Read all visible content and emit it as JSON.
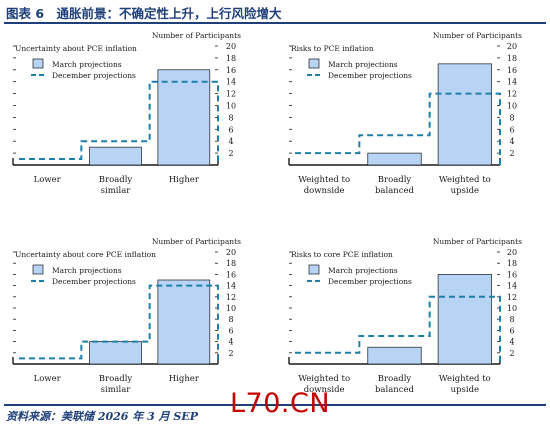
{
  "header": {
    "title": "图表 6　通胀前景：不确定性上升，上行风险增大"
  },
  "footer": {
    "source": "资料来源：美联储 2026 年 3 月 SEP",
    "watermark": "L70.CN"
  },
  "colors": {
    "accent": "#1f3f7a",
    "march_fill": "#b8d4f5",
    "march_edge": "#1a1a1a",
    "december_line": "#1f7fa8",
    "watermark": "#c40000"
  },
  "chart_data": [
    {
      "type": "bar",
      "title": "Uncertainty about PCE inflation",
      "ylabel": "Number of Participants",
      "categories": [
        "Lower",
        "Broadly\nsimilar",
        "Higher"
      ],
      "series": [
        {
          "name": "March projections",
          "style": "bar",
          "values": [
            0,
            3,
            16
          ]
        },
        {
          "name": "December projections",
          "style": "dashed-step",
          "values": [
            1,
            4,
            14
          ]
        }
      ],
      "ylim": [
        0,
        20
      ],
      "yticks": [
        2,
        4,
        6,
        8,
        10,
        12,
        14,
        16,
        18,
        20
      ],
      "legend": "top-left"
    },
    {
      "type": "bar",
      "title": "Risks to PCE inflation",
      "ylabel": "Number of Participants",
      "categories": [
        "Weighted to\ndownside",
        "Broadly\nbalanced",
        "Weighted to\nupside"
      ],
      "series": [
        {
          "name": "March projections",
          "style": "bar",
          "values": [
            0,
            2,
            17
          ]
        },
        {
          "name": "December projections",
          "style": "dashed-step",
          "values": [
            2,
            5,
            12
          ]
        }
      ],
      "ylim": [
        0,
        20
      ],
      "yticks": [
        2,
        4,
        6,
        8,
        10,
        12,
        14,
        16,
        18,
        20
      ],
      "legend": "top-left"
    },
    {
      "type": "bar",
      "title": "Uncertainty about core PCE inflation",
      "ylabel": "Number of Participants",
      "categories": [
        "Lower",
        "Broadly\nsimilar",
        "Higher"
      ],
      "series": [
        {
          "name": "March projections",
          "style": "bar",
          "values": [
            0,
            4,
            15
          ]
        },
        {
          "name": "December projections",
          "style": "dashed-step",
          "values": [
            1,
            4,
            14
          ]
        }
      ],
      "ylim": [
        0,
        20
      ],
      "yticks": [
        2,
        4,
        6,
        8,
        10,
        12,
        14,
        16,
        18,
        20
      ],
      "legend": "top-left"
    },
    {
      "type": "bar",
      "title": "Risks to core PCE inflation",
      "ylabel": "Number of Participants",
      "categories": [
        "Weighted to\ndownside",
        "Broadly\nbalanced",
        "Weighted to\nupside"
      ],
      "series": [
        {
          "name": "March projections",
          "style": "bar",
          "values": [
            0,
            3,
            16
          ]
        },
        {
          "name": "December projections",
          "style": "dashed-step",
          "values": [
            2,
            5,
            12
          ]
        }
      ],
      "ylim": [
        0,
        20
      ],
      "yticks": [
        2,
        4,
        6,
        8,
        10,
        12,
        14,
        16,
        18,
        20
      ],
      "legend": "top-left"
    }
  ]
}
